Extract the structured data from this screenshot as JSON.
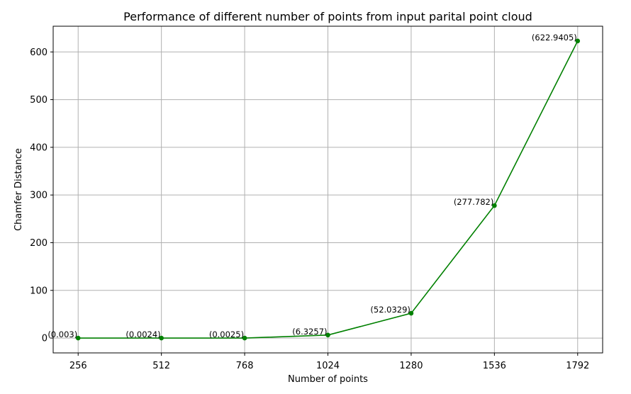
{
  "chart_data": {
    "type": "line",
    "title": "Performance of different number of points from input parital point cloud",
    "xlabel": "Number of points",
    "ylabel": "Chamfer Distance",
    "x": [
      256,
      512,
      768,
      1024,
      1280,
      1536,
      1792
    ],
    "x_tick_labels": [
      "256",
      "512",
      "768",
      "1024",
      "1280",
      "1536",
      "1792"
    ],
    "y_ticks": [
      0,
      100,
      200,
      300,
      400,
      500,
      600
    ],
    "y_tick_labels": [
      "0",
      "100",
      "200",
      "300",
      "400",
      "500",
      "600"
    ],
    "ylim": [
      -31.1,
      653.9
    ],
    "grid": true,
    "series": [
      {
        "values": [
          0.003,
          0.0024,
          0.0025,
          6.3257,
          52.0329,
          277.782,
          622.9405
        ],
        "labels": [
          "(0.003)",
          "(0.0024)",
          "(0.0025)",
          "(6.3257)",
          "(52.0329)",
          "(277.782)",
          "(622.9405)"
        ],
        "color": "#008000"
      }
    ],
    "grid_color": "#b0b0b0"
  }
}
